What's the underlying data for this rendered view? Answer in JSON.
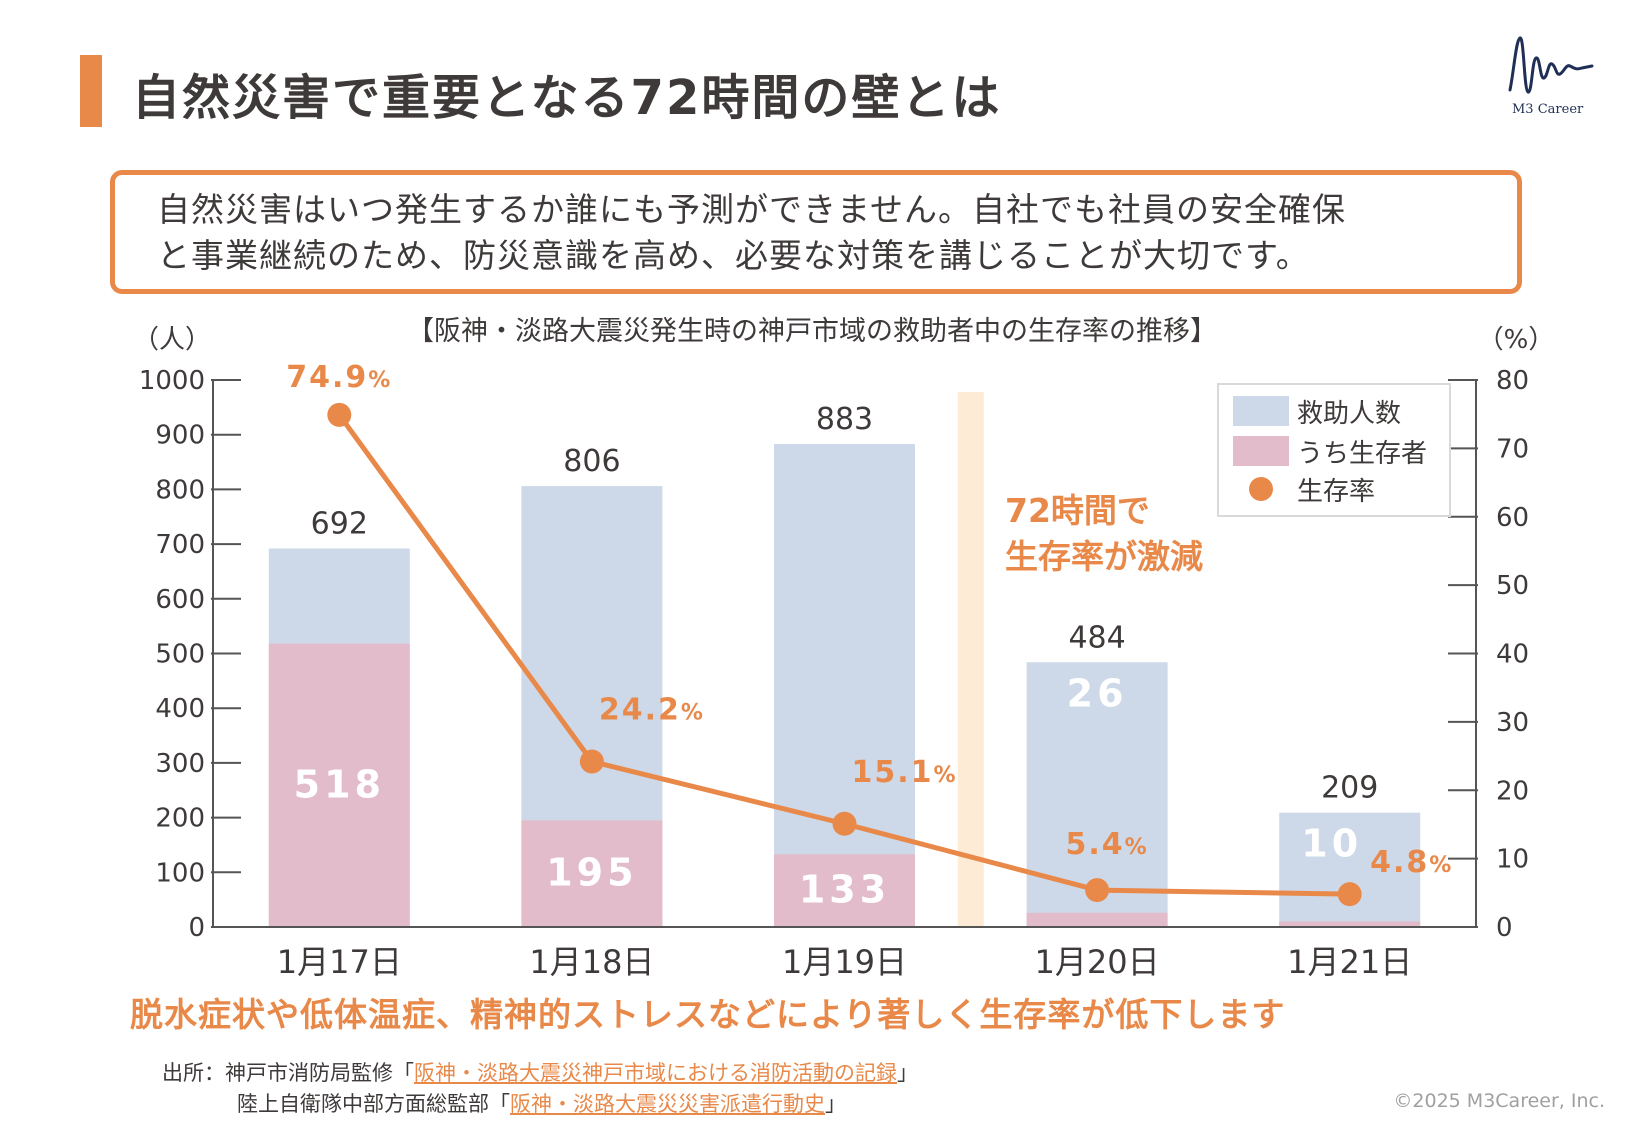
{
  "title": "自然災害で重要となる72時間の壁とは",
  "logo": {
    "text": "M3 Career"
  },
  "callout": {
    "line1": "自然災害はいつ発生するか誰にも予測ができません。自社でも社員の安全確保",
    "line2": "と事業継続のため、防災意識を高め、必要な対策を講じることが大切です。"
  },
  "chart_data": {
    "type": "bar",
    "title": "【阪神・淡路大震災発生時の神戸市域の救助者中の生存率の推移】",
    "left_axis_unit": "（人）",
    "right_axis_unit": "（%）",
    "categories": [
      "1月17日",
      "1月18日",
      "1月19日",
      "1月20日",
      "1月21日"
    ],
    "series": [
      {
        "name": "救助人数",
        "type": "bar",
        "values": [
          692,
          806,
          883,
          484,
          209
        ],
        "labels": [
          "692",
          "806",
          "883",
          "484",
          "209"
        ],
        "color": "#cdd9e8"
      },
      {
        "name": "うち生存者",
        "type": "bar",
        "values": [
          518,
          195,
          133,
          26,
          10
        ],
        "labels": [
          "518",
          "195",
          "133",
          "26",
          "10"
        ],
        "color": "#e2bccb"
      },
      {
        "name": "生存率",
        "type": "line",
        "axis": "right",
        "values": [
          74.9,
          24.2,
          15.1,
          5.4,
          4.8
        ],
        "labels": [
          "74.9",
          "24.2",
          "15.1",
          "5.4",
          "4.8"
        ],
        "label_suffix": "%",
        "color": "#e8894a"
      }
    ],
    "ylim_left": [
      0,
      1000
    ],
    "yticks_left": [
      "0",
      "100",
      "200",
      "300",
      "400",
      "500",
      "600",
      "700",
      "800",
      "900",
      "1000"
    ],
    "ylim_right": [
      0,
      80
    ],
    "yticks_right": [
      "0",
      "10",
      "20",
      "30",
      "40",
      "50",
      "60",
      "70",
      "80"
    ],
    "highlight_between": [
      "1月19日",
      "1月20日"
    ],
    "highlight_color": "#fdebd6",
    "legend_position": "top-right",
    "annotation": {
      "line1": "72時間で",
      "line2": "生存率が激減"
    },
    "grid": false
  },
  "bottom_note": "脱水症状や低体温症、精神的ストレスなどにより著しく生存率が低下します",
  "source": {
    "label": "出所：神戸市消防局監修「",
    "link1": "阪神・淡路大震災神戸市域における消防活動の記録",
    "close1": "」",
    "line2_prefix": "陸上自衛隊中部方面総監部「",
    "link2": "阪神・淡路大震災災害派遣行動史",
    "close2": "」"
  },
  "copyright": "©2025 M3Career, Inc."
}
